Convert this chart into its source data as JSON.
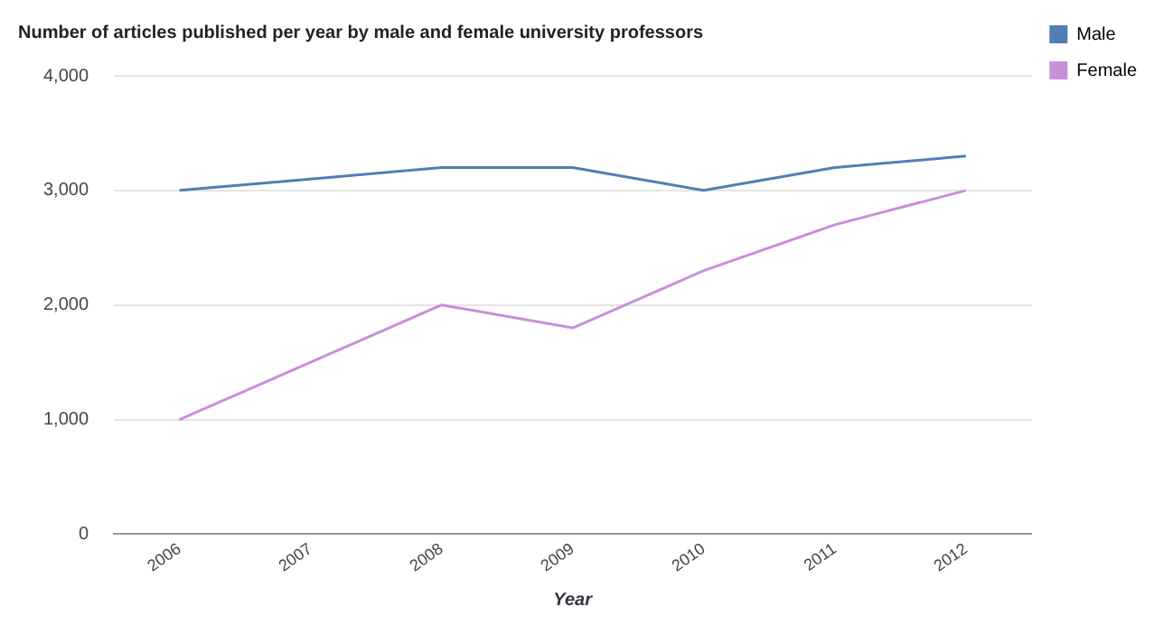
{
  "chart_data": {
    "type": "line",
    "title": "Number of articles published per year by male and female university professors",
    "xlabel": "Year",
    "categories": [
      "2006",
      "2007",
      "2008",
      "2009",
      "2010",
      "2011",
      "2012"
    ],
    "series": [
      {
        "name": "Male",
        "color": "#4f7fb3",
        "values": [
          3000,
          3100,
          3200,
          3200,
          3000,
          3200,
          3300
        ]
      },
      {
        "name": "Female",
        "color": "#c98fd9",
        "values": [
          1000,
          1500,
          2000,
          1800,
          2300,
          2700,
          3000
        ]
      }
    ],
    "ylim": [
      0,
      4000
    ],
    "yticks": [
      {
        "value": 0,
        "label": "0"
      },
      {
        "value": 1000,
        "label": "1,000"
      },
      {
        "value": 2000,
        "label": "2,000"
      },
      {
        "value": 3000,
        "label": "3,000"
      },
      {
        "value": 4000,
        "label": "4,000"
      }
    ],
    "grid": "y",
    "legend": "top right",
    "marker": "none"
  }
}
